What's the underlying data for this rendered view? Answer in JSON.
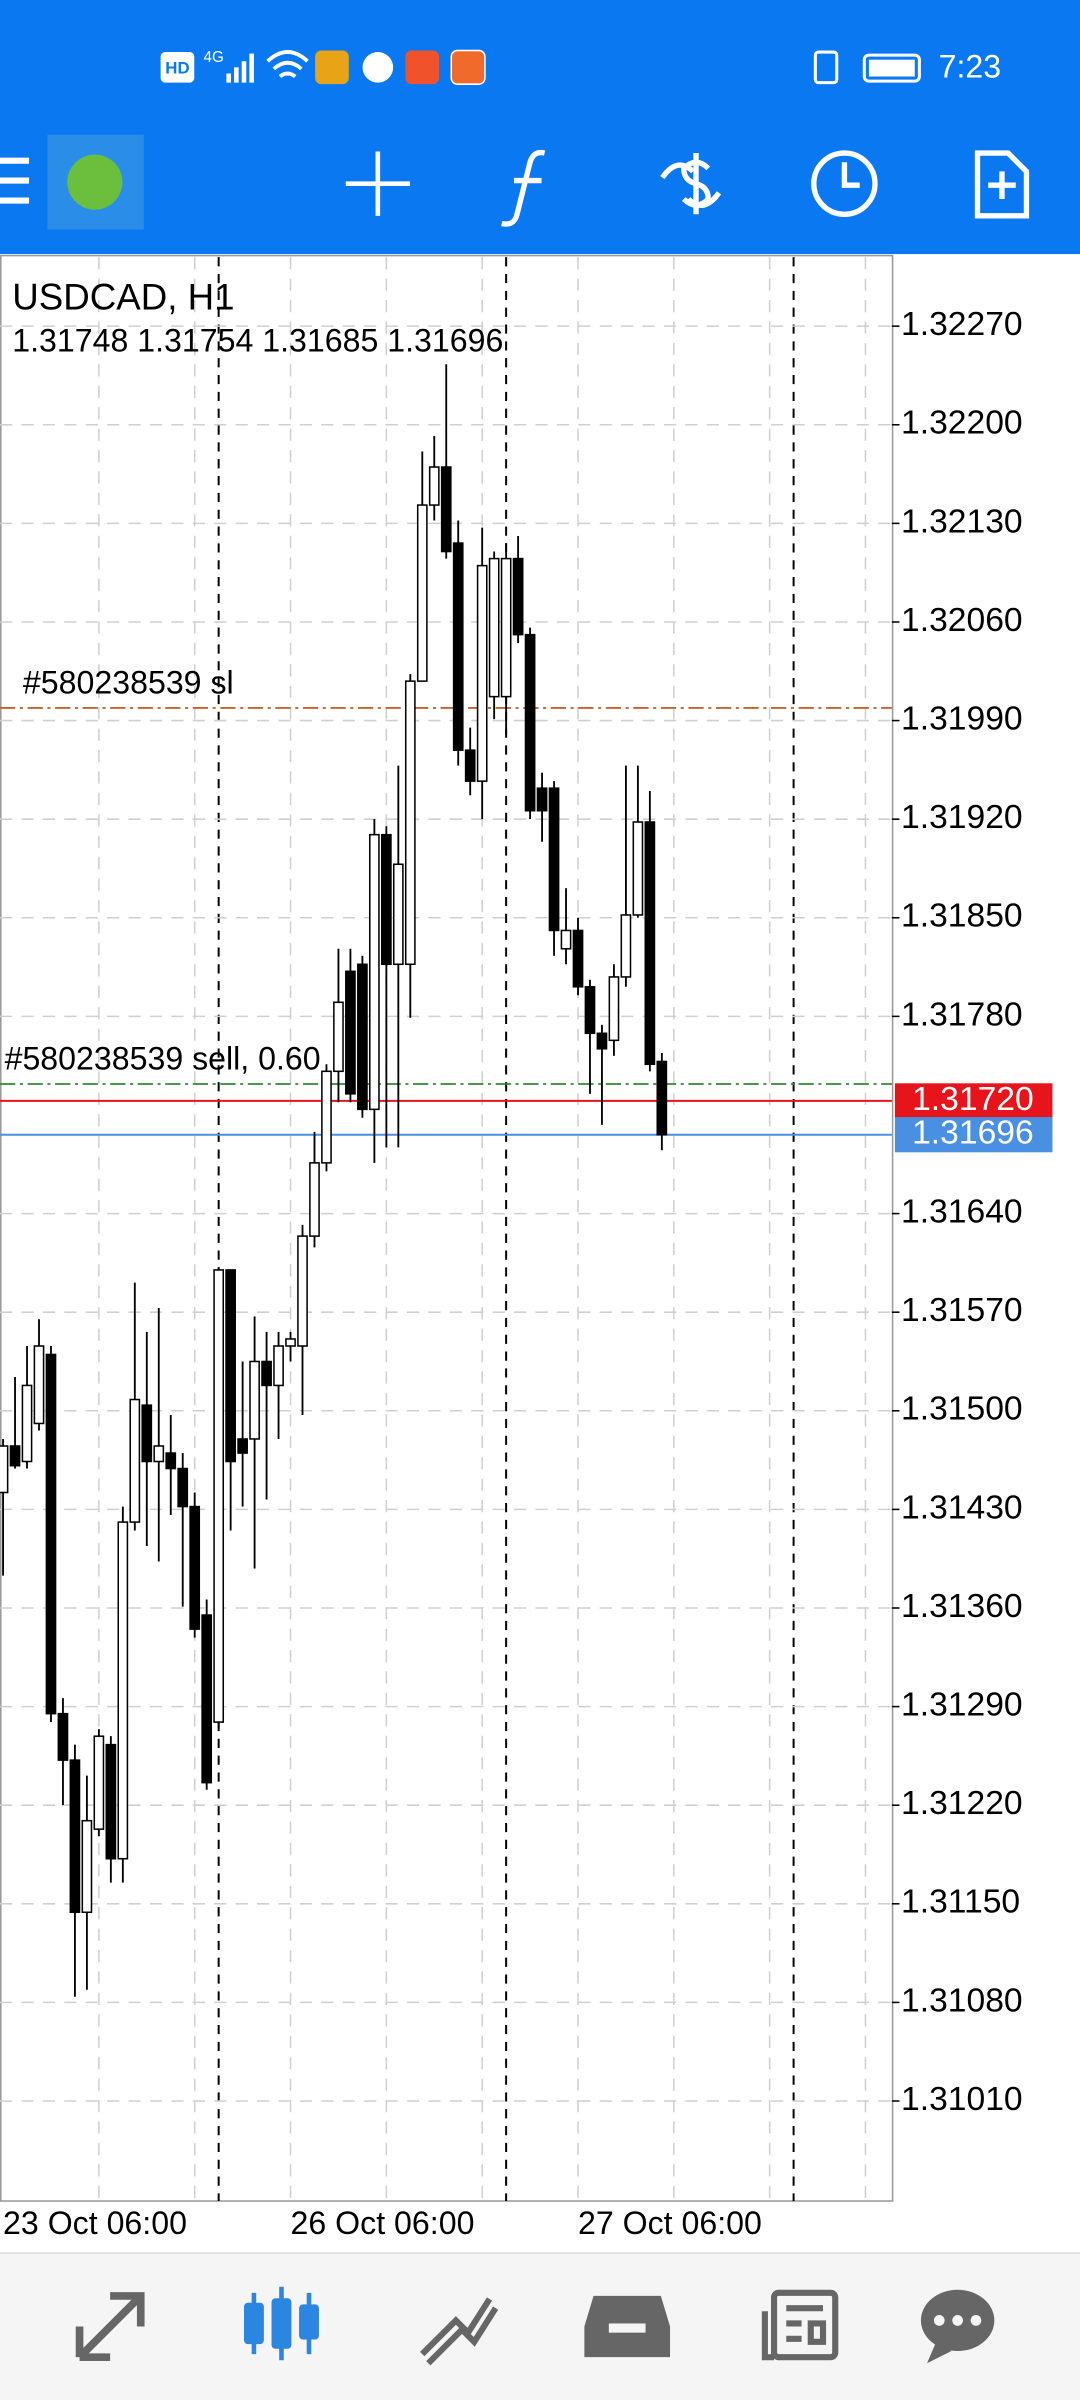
{
  "status_bar": {
    "indicators": [
      "HD",
      "4G"
    ],
    "time": "7:23"
  },
  "chart_data": {
    "type": "candlestick",
    "title": "USDCAD, H1",
    "subtitle": "1.31748 1.31754 1.31685 1.31696",
    "categories": [
      "23 Oct 06:00",
      null,
      null,
      null,
      null,
      null,
      null,
      null,
      null,
      null,
      null,
      null,
      null,
      null,
      null,
      null,
      null,
      null,
      null,
      null,
      null,
      null,
      null,
      null,
      "26 Oct 06:00",
      null,
      null,
      null,
      null,
      null,
      null,
      null,
      null,
      null,
      null,
      null,
      null,
      null,
      null,
      null,
      null,
      null,
      null,
      null,
      null,
      null,
      null,
      null,
      "27 Oct 06:00",
      null,
      null,
      null,
      null,
      null,
      null,
      null
    ],
    "open": [
      1.31442,
      1.31475,
      1.31464,
      1.31491,
      1.3154,
      1.31285,
      1.31252,
      1.31144,
      1.31203,
      1.31263,
      1.31182,
      1.31421,
      1.31504,
      1.31464,
      1.3147,
      1.31459,
      1.31432,
      1.31355,
      1.31279,
      1.316,
      1.3148,
      1.3148,
      1.31535,
      1.31518,
      1.31546,
      1.31546,
      1.31624,
      1.31676,
      1.31741,
      1.31812,
      1.31817,
      1.31714,
      1.31909,
      1.31817,
      1.31817,
      1.32018,
      1.32143,
      1.3217,
      1.32116,
      1.31969,
      1.31947,
      1.32007,
      1.32007,
      1.32105,
      1.32051,
      1.31942,
      1.31942,
      1.31828,
      1.31841,
      1.31801,
      1.31768,
      1.31763,
      1.31808,
      1.31852,
      1.31918,
      1.31748
    ],
    "high": [
      1.3148,
      1.31524,
      1.31546,
      1.31565,
      1.31546,
      1.31296,
      1.31263,
      1.31241,
      1.31274,
      1.31269,
      1.31432,
      1.31591,
      1.31556,
      1.31573,
      1.31497,
      1.3147,
      1.31442,
      1.31366,
      1.31602,
      1.316,
      1.31535,
      1.31567,
      1.31556,
      1.31556,
      1.31556,
      1.31632,
      1.31698,
      1.31746,
      1.31828,
      1.31828,
      1.31823,
      1.3192,
      1.31915,
      1.31958,
      1.32023,
      1.32181,
      1.32192,
      1.32243,
      1.32132,
      1.31985,
      1.32127,
      1.3211,
      1.32116,
      1.32121,
      1.32056,
      1.31953,
      1.31947,
      1.31871,
      1.3185,
      1.31806,
      1.31774,
      1.31817,
      1.31958,
      1.31958,
      1.3194,
      1.31754
    ],
    "low": [
      1.31383,
      1.31459,
      1.31459,
      1.31486,
      1.31279,
      1.3122,
      1.31084,
      1.31089,
      1.31198,
      1.31165,
      1.31165,
      1.31415,
      1.31404,
      1.31393,
      1.31426,
      1.31361,
      1.31339,
      1.31231,
      1.31274,
      1.31415,
      1.31432,
      1.31388,
      1.31437,
      1.3148,
      1.31535,
      1.31497,
      1.31616,
      1.3167,
      1.31719,
      1.31719,
      1.31708,
      1.31676,
      1.31687,
      1.31687,
      1.31779,
      1.32018,
      1.32132,
      1.32105,
      1.31958,
      1.31937,
      1.3192,
      1.31991,
      1.3198,
      1.32045,
      1.3192,
      1.31904,
      1.31823,
      1.31817,
      1.31795,
      1.31725,
      1.31703,
      1.31752,
      1.31801,
      1.3185,
      1.31741,
      1.31685
    ],
    "close": [
      1.31475,
      1.31461,
      1.31518,
      1.31546,
      1.31285,
      1.31252,
      1.31144,
      1.31209,
      1.31269,
      1.31182,
      1.31421,
      1.31508,
      1.31464,
      1.31475,
      1.31459,
      1.31432,
      1.31345,
      1.31236,
      1.316,
      1.31464,
      1.3147,
      1.31535,
      1.31518,
      1.31546,
      1.31551,
      1.31624,
      1.31676,
      1.31741,
      1.3179,
      1.31725,
      1.31714,
      1.31909,
      1.31817,
      1.31888,
      1.32018,
      1.32143,
      1.3217,
      1.3211,
      1.31969,
      1.31947,
      1.321,
      1.32105,
      1.32105,
      1.32051,
      1.31926,
      1.31926,
      1.31841,
      1.31841,
      1.31801,
      1.31768,
      1.31757,
      1.31808,
      1.31852,
      1.31918,
      1.31746,
      1.31696
    ],
    "up_color": "#ffffff",
    "down_color": "#000000",
    "ylim": [
      1.30939,
      1.32319
    ],
    "yticks": [
      {
        "value": 1.3227,
        "label": "1.32270"
      },
      {
        "value": 1.322,
        "label": "1.32200"
      },
      {
        "value": 1.3213,
        "label": "1.32130"
      },
      {
        "value": 1.3206,
        "label": "1.32060"
      },
      {
        "value": 1.3199,
        "label": "1.31990"
      },
      {
        "value": 1.3192,
        "label": "1.31920"
      },
      {
        "value": 1.3185,
        "label": "1.31850"
      },
      {
        "value": 1.3178,
        "label": "1.31780"
      },
      {
        "value": 1.3164,
        "label": "1.31640"
      },
      {
        "value": 1.3157,
        "label": "1.31570"
      },
      {
        "value": 1.315,
        "label": "1.31500"
      },
      {
        "value": 1.3143,
        "label": "1.31430"
      },
      {
        "value": 1.3136,
        "label": "1.31360"
      },
      {
        "value": 1.3129,
        "label": "1.31290"
      },
      {
        "value": 1.3122,
        "label": "1.31220"
      },
      {
        "value": 1.3115,
        "label": "1.31150"
      },
      {
        "value": 1.3108,
        "label": "1.31080"
      },
      {
        "value": 1.3101,
        "label": "1.31010"
      }
    ],
    "grid": true,
    "order_lines": [
      {
        "label": "#580238539 sl",
        "value": 1.31999,
        "color": "#c8642a"
      },
      {
        "label": "#580238539 sell, 0.60",
        "value": 1.31732,
        "color": "#2e8b2e"
      }
    ],
    "ask": {
      "value": 1.3172,
      "label": "1.31720",
      "color": "#e8141c"
    },
    "bid": {
      "value": 1.31696,
      "label": "1.31696",
      "color": "#4a90e2"
    }
  }
}
